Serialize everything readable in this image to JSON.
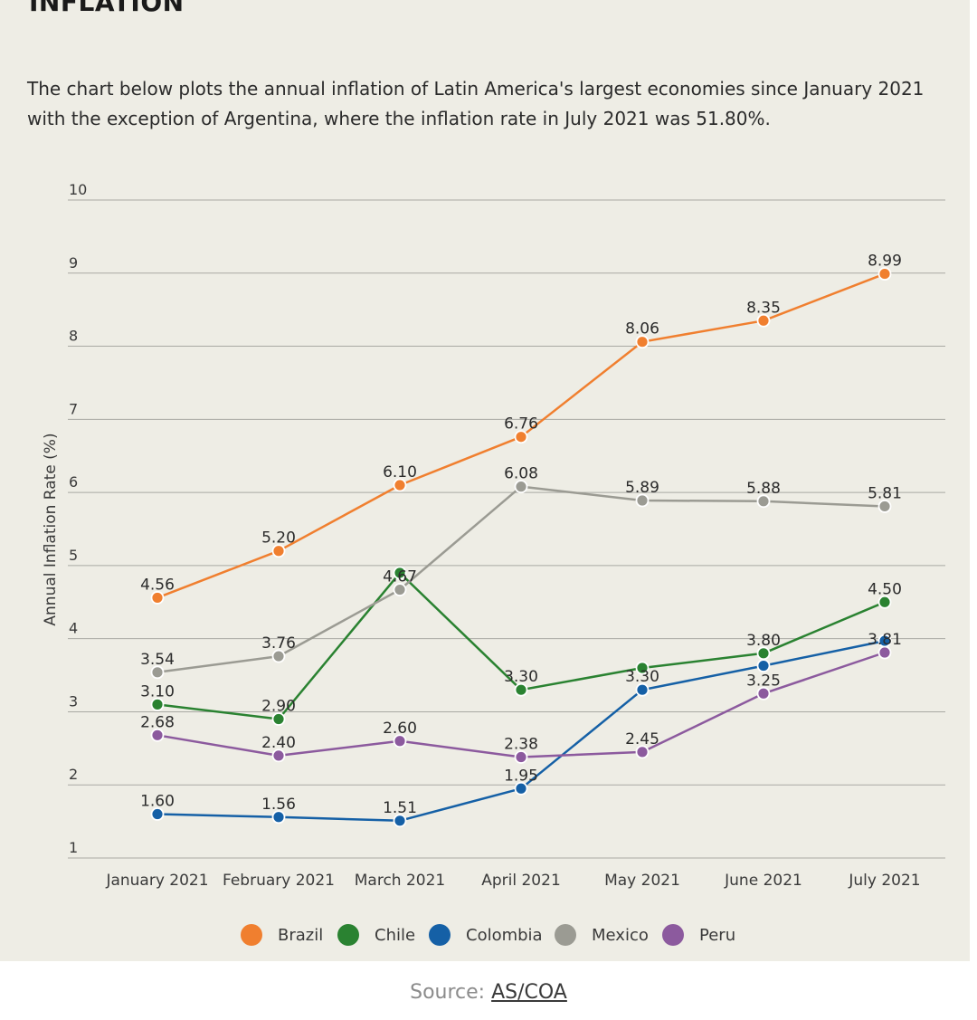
{
  "page": {
    "heading": "INFLATION",
    "description": "The chart below plots the annual inflation of Latin America's largest economies since January 2021 with the exception of Argentina, where the inflation rate in July 2021 was 51.80%.",
    "source_prefix": "Source:",
    "source_link": "AS/COA"
  },
  "chart_data": {
    "type": "line",
    "title": "",
    "xlabel": "",
    "ylabel": "Annual Inflation Rate (%)",
    "ylim": [
      1,
      10
    ],
    "yticks": [
      1,
      2,
      3,
      4,
      5,
      6,
      7,
      8,
      9,
      10
    ],
    "grid": true,
    "legend_position": "bottom",
    "categories": [
      "January 2021",
      "February 2021",
      "March 2021",
      "April 2021",
      "May 2021",
      "June 2021",
      "July 2021"
    ],
    "series": [
      {
        "name": "Brazil",
        "color": "#f07f2f",
        "values": [
          4.56,
          5.2,
          6.1,
          6.76,
          8.06,
          8.35,
          8.99
        ],
        "labels": [
          "4.56",
          "5.20",
          "6.10",
          "6.76",
          "8.06",
          "8.35",
          "8.99"
        ]
      },
      {
        "name": "Chile",
        "color": "#2a8231",
        "values": [
          3.1,
          2.9,
          4.9,
          3.3,
          3.6,
          3.8,
          4.5
        ],
        "labels": [
          "3.10",
          "2.90",
          "",
          "3.30",
          "",
          "3.80",
          "4.50"
        ]
      },
      {
        "name": "Colombia",
        "color": "#1560a6",
        "values": [
          1.6,
          1.56,
          1.51,
          1.95,
          3.3,
          3.63,
          3.97
        ],
        "labels": [
          "1.60",
          "1.56",
          "1.51",
          "1.95",
          "3.30",
          "",
          ""
        ]
      },
      {
        "name": "Mexico",
        "color": "#9b9b93",
        "values": [
          3.54,
          3.76,
          4.67,
          6.08,
          5.89,
          5.88,
          5.81
        ],
        "labels": [
          "3.54",
          "3.76",
          "4.67",
          "6.08",
          "5.89",
          "5.88",
          "5.81"
        ]
      },
      {
        "name": "Peru",
        "color": "#8c5a9e",
        "values": [
          2.68,
          2.4,
          2.6,
          2.38,
          2.45,
          3.25,
          3.81
        ],
        "labels": [
          "2.68",
          "2.40",
          "2.60",
          "2.38",
          "2.45",
          "3.25",
          "3.81"
        ]
      }
    ]
  }
}
